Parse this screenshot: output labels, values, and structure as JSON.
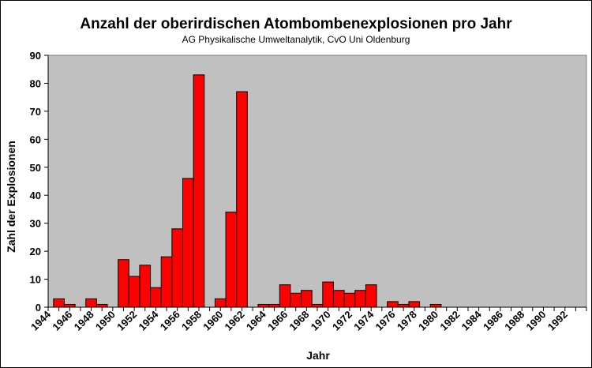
{
  "chart_data": {
    "type": "bar",
    "title": "Anzahl der oberirdischen Atombombenexplosionen pro Jahr",
    "subtitle": "AG Physikalische Umweltanalytik, CvO Uni Oldenburg",
    "xlabel": "Jahr",
    "ylabel": "Zahl der Explosionen",
    "ylim": [
      0,
      90
    ],
    "yticks": [
      0,
      10,
      20,
      30,
      40,
      50,
      60,
      70,
      80,
      90
    ],
    "grid": false,
    "plot_background": "#C0C0C0",
    "bar_color": "#FF0000",
    "x_tick_labels": [
      "1944",
      "1946",
      "1948",
      "1950",
      "1952",
      "1954",
      "1956",
      "1958",
      "1960",
      "1962",
      "1964",
      "1966",
      "1968",
      "1970",
      "1972",
      "1974",
      "1976",
      "1978",
      "1980",
      "1982",
      "1984",
      "1986",
      "1988",
      "1990",
      "1992"
    ],
    "x": [
      1945,
      1946,
      1947,
      1948,
      1949,
      1950,
      1951,
      1952,
      1953,
      1954,
      1955,
      1956,
      1957,
      1958,
      1959,
      1960,
      1961,
      1962,
      1963,
      1964,
      1965,
      1966,
      1967,
      1968,
      1969,
      1970,
      1971,
      1972,
      1973,
      1974,
      1975,
      1976,
      1977,
      1978,
      1979,
      1980,
      1981,
      1982,
      1983,
      1984,
      1985,
      1986,
      1987,
      1988,
      1989,
      1990,
      1991,
      1992,
      1993
    ],
    "values": [
      3,
      1,
      0,
      3,
      1,
      0,
      17,
      11,
      15,
      7,
      18,
      28,
      46,
      83,
      0,
      3,
      34,
      77,
      0,
      1,
      1,
      8,
      5,
      6,
      1,
      9,
      6,
      5,
      6,
      8,
      0,
      2,
      1,
      2,
      0,
      1,
      0,
      0,
      0,
      0,
      0,
      0,
      0,
      0,
      0,
      0,
      0,
      0,
      0
    ]
  }
}
